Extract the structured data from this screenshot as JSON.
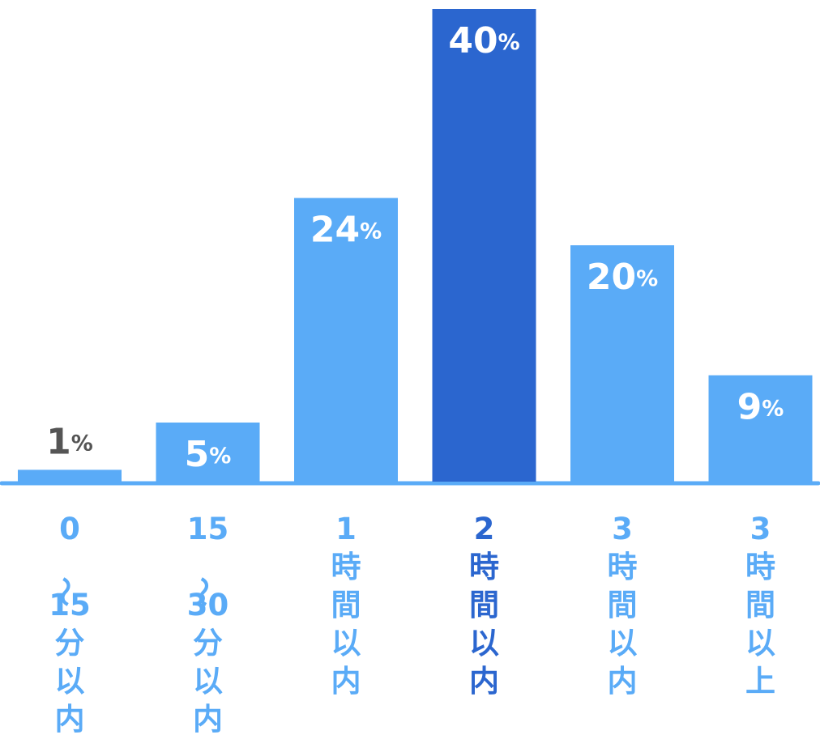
{
  "chart_data": {
    "type": "bar",
    "categories": [
      "0〜15分以内",
      "15〜30分以内",
      "1時間以内",
      "2時間以内",
      "3時間以内",
      "3時間以上"
    ],
    "values": [
      1,
      5,
      24,
      40,
      20,
      9
    ],
    "value_labels": [
      "1%",
      "5%",
      "24%",
      "40%",
      "20%",
      "9%"
    ],
    "colors": [
      "#5aabf7",
      "#5aabf7",
      "#5aabf7",
      "#2b66cf",
      "#5aabf7",
      "#5aabf7"
    ]
  }
}
